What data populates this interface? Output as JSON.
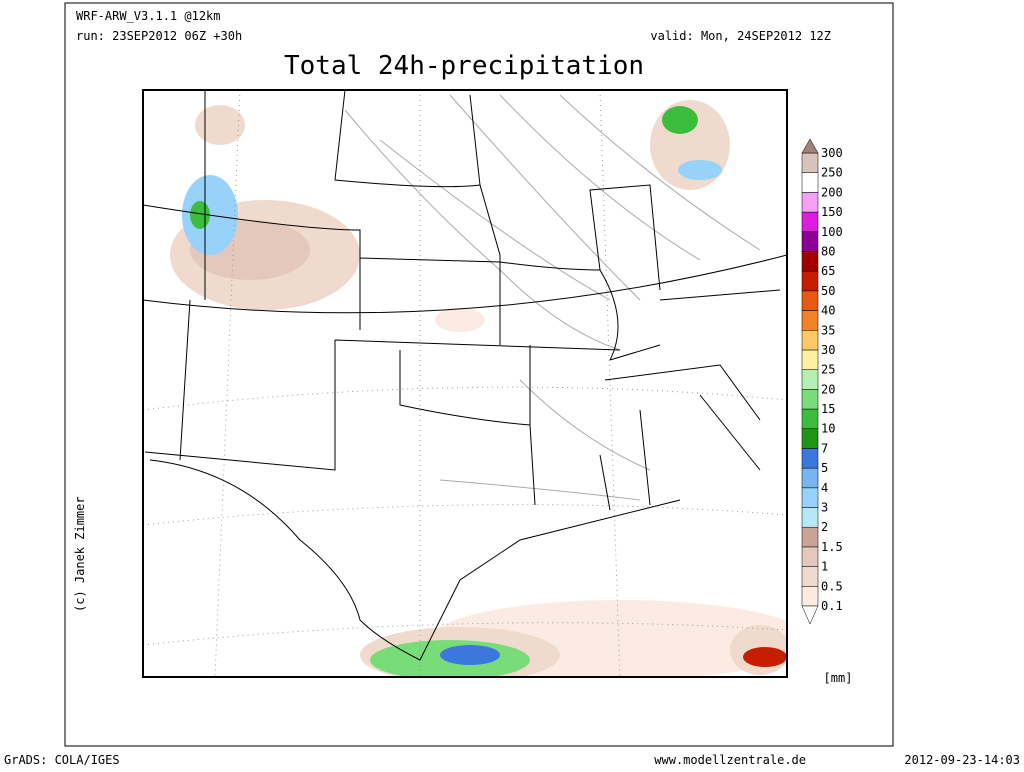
{
  "header": {
    "model": "WRF-ARW_V3.1.1 @12km",
    "run": "run: 23SEP2012 06Z +30h",
    "valid": "valid: Mon, 24SEP2012 12Z",
    "title": "Total 24h-precipitation"
  },
  "legend": {
    "unit": "[mm]",
    "levels": [
      0.1,
      0.5,
      1,
      1.5,
      2,
      3,
      4,
      5,
      7,
      10,
      15,
      20,
      25,
      30,
      35,
      40,
      50,
      65,
      80,
      100,
      150,
      200,
      250,
      300
    ],
    "colors": [
      "#fbebe3",
      "#f0dace",
      "#e3c8bb",
      "#c9a394",
      "#b4e8f4",
      "#96d2fa",
      "#78b4f0",
      "#3c78dc",
      "#1e9614",
      "#3cbe3c",
      "#78dc78",
      "#b4f0b4",
      "#fff0a0",
      "#fac864",
      "#f08228",
      "#e65a14",
      "#c81e00",
      "#a00000",
      "#8c0096",
      "#dc1edc",
      "#f5a0f5",
      "#ffffff",
      "#d7c3b9"
    ],
    "under_color": "#ffffff",
    "over_color": "#a08278"
  },
  "copyright": "(c) Janek Zimmer",
  "footer": {
    "software": "GrADS: COLA/IGES",
    "website": "www.modellzentrale.de",
    "timestamp": "2012-09-23-14:03"
  }
}
